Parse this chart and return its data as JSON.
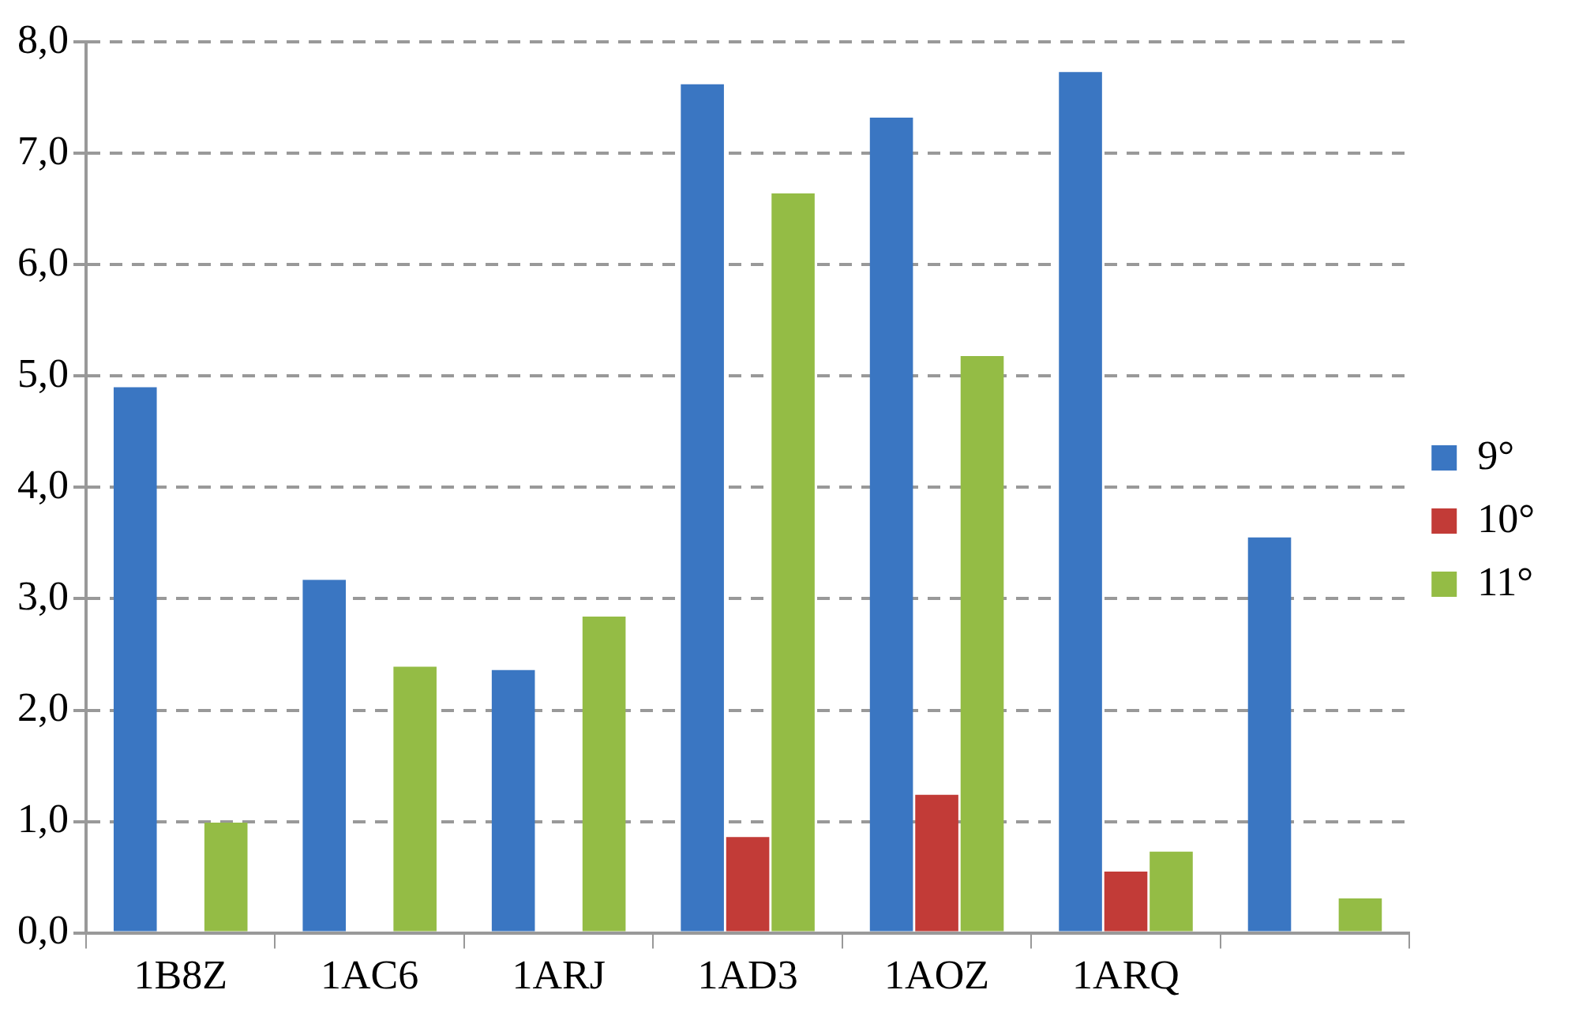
{
  "chart_data": {
    "type": "bar",
    "categories": [
      "1B8Z",
      "1AC6",
      "1ARJ",
      "1AD3",
      "1AOZ",
      "1ARQ",
      null
    ],
    "series": [
      {
        "name": "9°",
        "color": "#3a76c2",
        "values": [
          4.9,
          3.17,
          2.36,
          7.62,
          7.32,
          7.73,
          3.55
        ]
      },
      {
        "name": "10°",
        "color": "#c23b37",
        "values": [
          null,
          null,
          null,
          0.86,
          1.24,
          0.55,
          null
        ]
      },
      {
        "name": "11°",
        "color": "#94bc45",
        "values": [
          0.99,
          2.39,
          2.84,
          6.64,
          5.18,
          0.73,
          0.31
        ]
      }
    ],
    "ylim": [
      0,
      8
    ],
    "yticks": [
      {
        "value": 0,
        "label": "0,0"
      },
      {
        "value": 1,
        "label": "1,0"
      },
      {
        "value": 2,
        "label": "2,0"
      },
      {
        "value": 3,
        "label": "3,0"
      },
      {
        "value": 4,
        "label": "4,0"
      },
      {
        "value": 5,
        "label": "5,0"
      },
      {
        "value": 6,
        "label": "6,0"
      },
      {
        "value": 7,
        "label": "7,0"
      },
      {
        "value": 8,
        "label": "8,0"
      }
    ],
    "grid": "y",
    "legend": "right"
  }
}
